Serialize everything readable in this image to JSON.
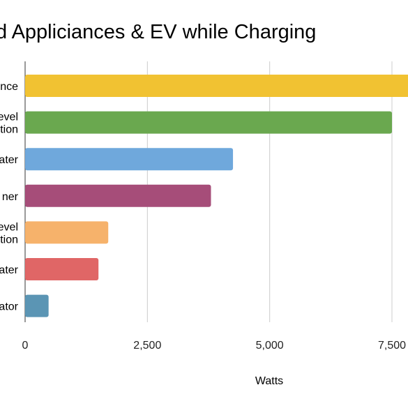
{
  "chart_data": {
    "type": "bar",
    "orientation": "horizontal",
    "title": "d Appliciances & EV while Charging",
    "xlabel": "Watts",
    "ylabel": "",
    "xlim": [
      0,
      7500
    ],
    "x_ticks": [
      0,
      2500,
      5000,
      7500
    ],
    "x_tick_labels": [
      "0",
      "2,500",
      "5,000",
      "7,500"
    ],
    "grid": true,
    "categories": [
      [
        "nce"
      ],
      [
        "evel",
        "tion"
      ],
      [
        "ater"
      ],
      [
        "ner"
      ],
      [
        "evel",
        "tion"
      ],
      [
        "ater"
      ],
      [
        "ator"
      ]
    ],
    "values": [
      8000,
      7500,
      4250,
      3800,
      1700,
      1500,
      480
    ],
    "colors": [
      "#f1c232",
      "#6aa84f",
      "#6fa8dc",
      "#a64d79",
      "#f6b26b",
      "#e06666",
      "#5b95b4"
    ]
  }
}
